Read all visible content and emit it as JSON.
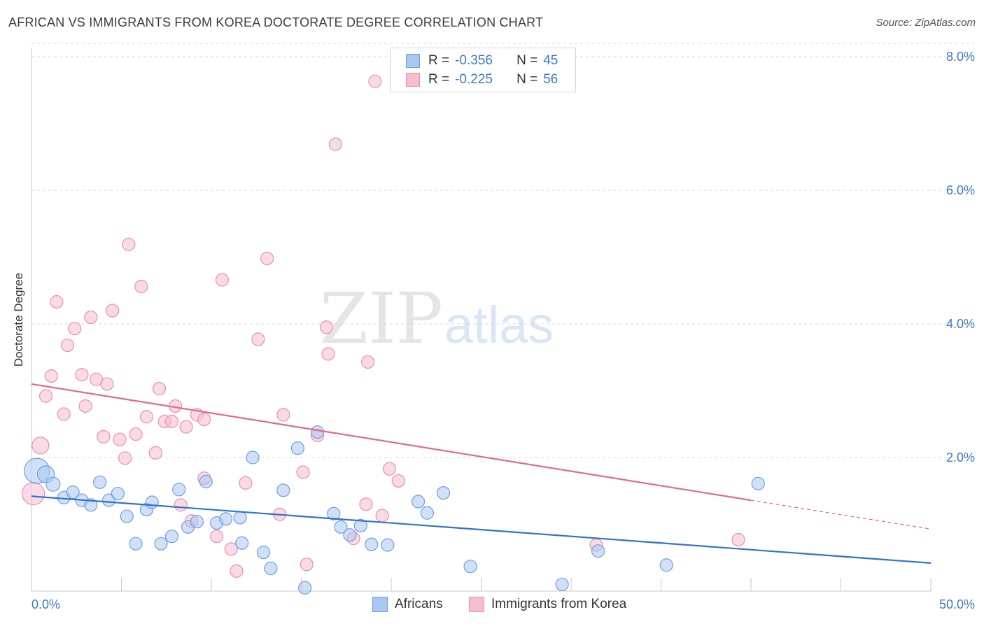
{
  "title": "AFRICAN VS IMMIGRANTS FROM KOREA DOCTORATE DEGREE CORRELATION CHART",
  "source": "Source: ZipAtlas.com",
  "watermark": {
    "zip": "ZIP",
    "atlas": "atlas"
  },
  "colors": {
    "blue_fill": "#a9c8f0",
    "blue_stroke": "#6f9fe0",
    "blue_line": "#2f72cf",
    "pink_fill": "#f6bcd0",
    "pink_stroke": "#ea8fb0",
    "pink_line": "#e46790",
    "tick_label": "#3f78c8",
    "grid": "#d9d9d9"
  },
  "legend": [
    {
      "r_label": "R =",
      "r_value": "-0.356",
      "n_label": "N =",
      "n_value": "45"
    },
    {
      "r_label": "R =",
      "r_value": "-0.225",
      "n_label": "N =",
      "n_value": "56"
    }
  ],
  "bottom_legend": [
    "Africans",
    "Immigrants from Korea"
  ],
  "chart_data": {
    "type": "scatter",
    "ylabel": "Doctorate Degree",
    "xlim": [
      0,
      50
    ],
    "ylim": [
      0,
      8.2
    ],
    "x_tick_labels": [
      "0.0%",
      "50.0%"
    ],
    "y_ticks": [
      2,
      4,
      6,
      8
    ],
    "y_tick_labels": [
      "2.0%",
      "4.0%",
      "6.0%",
      "8.0%"
    ],
    "grid": true,
    "series": [
      {
        "name": "Africans",
        "trend": {
          "x": [
            0,
            50
          ],
          "y": [
            1.42,
            0.42
          ]
        },
        "points": [
          {
            "x": 0.3,
            "y": 1.8,
            "s": 18
          },
          {
            "x": 0.8,
            "y": 1.75,
            "s": 12
          },
          {
            "x": 1.2,
            "y": 1.6,
            "s": 10
          },
          {
            "x": 1.8,
            "y": 1.4,
            "s": 9
          },
          {
            "x": 2.3,
            "y": 1.48,
            "s": 9
          },
          {
            "x": 2.8,
            "y": 1.36,
            "s": 9
          },
          {
            "x": 3.3,
            "y": 1.29,
            "s": 9
          },
          {
            "x": 3.8,
            "y": 1.63,
            "s": 9
          },
          {
            "x": 4.3,
            "y": 1.36,
            "s": 9
          },
          {
            "x": 4.8,
            "y": 1.46,
            "s": 9
          },
          {
            "x": 5.3,
            "y": 1.12,
            "s": 9
          },
          {
            "x": 5.8,
            "y": 0.71,
            "s": 9
          },
          {
            "x": 6.4,
            "y": 1.22,
            "s": 9
          },
          {
            "x": 6.7,
            "y": 1.33,
            "s": 9
          },
          {
            "x": 7.2,
            "y": 0.71,
            "s": 9
          },
          {
            "x": 7.8,
            "y": 0.82,
            "s": 9
          },
          {
            "x": 8.2,
            "y": 1.52,
            "s": 9
          },
          {
            "x": 8.7,
            "y": 0.96,
            "s": 9
          },
          {
            "x": 9.2,
            "y": 1.04,
            "s": 9
          },
          {
            "x": 9.7,
            "y": 1.64,
            "s": 9
          },
          {
            "x": 10.3,
            "y": 1.02,
            "s": 9
          },
          {
            "x": 10.8,
            "y": 1.08,
            "s": 9
          },
          {
            "x": 11.6,
            "y": 1.1,
            "s": 9
          },
          {
            "x": 11.7,
            "y": 0.72,
            "s": 9
          },
          {
            "x": 12.3,
            "y": 2.0,
            "s": 9
          },
          {
            "x": 12.9,
            "y": 0.58,
            "s": 9
          },
          {
            "x": 13.3,
            "y": 0.34,
            "s": 9
          },
          {
            "x": 14.0,
            "y": 1.51,
            "s": 9
          },
          {
            "x": 14.8,
            "y": 2.14,
            "s": 9
          },
          {
            "x": 15.2,
            "y": 0.05,
            "s": 9
          },
          {
            "x": 15.9,
            "y": 2.38,
            "s": 9
          },
          {
            "x": 16.8,
            "y": 1.16,
            "s": 9
          },
          {
            "x": 17.2,
            "y": 0.96,
            "s": 9
          },
          {
            "x": 17.7,
            "y": 0.84,
            "s": 9
          },
          {
            "x": 18.3,
            "y": 0.98,
            "s": 9
          },
          {
            "x": 18.9,
            "y": 0.7,
            "s": 9
          },
          {
            "x": 19.8,
            "y": 0.69,
            "s": 9
          },
          {
            "x": 21.5,
            "y": 1.34,
            "s": 9
          },
          {
            "x": 22.0,
            "y": 1.17,
            "s": 9
          },
          {
            "x": 22.9,
            "y": 1.47,
            "s": 9
          },
          {
            "x": 24.4,
            "y": 0.37,
            "s": 9
          },
          {
            "x": 29.5,
            "y": 0.1,
            "s": 9
          },
          {
            "x": 31.5,
            "y": 0.6,
            "s": 9
          },
          {
            "x": 35.3,
            "y": 0.39,
            "s": 9
          },
          {
            "x": 40.4,
            "y": 1.61,
            "s": 9
          }
        ]
      },
      {
        "name": "Immigrants from Korea",
        "trend": {
          "x": [
            0,
            40
          ],
          "y": [
            3.1,
            1.36
          ]
        },
        "trend_dashed": {
          "x": [
            40,
            50
          ],
          "y": [
            1.36,
            0.93
          ]
        },
        "points": [
          {
            "x": 0.1,
            "y": 1.46,
            "s": 16
          },
          {
            "x": 0.5,
            "y": 2.18,
            "s": 12
          },
          {
            "x": 0.8,
            "y": 2.92,
            "s": 9
          },
          {
            "x": 1.1,
            "y": 3.22,
            "s": 9
          },
          {
            "x": 1.4,
            "y": 4.33,
            "s": 9
          },
          {
            "x": 1.8,
            "y": 2.65,
            "s": 9
          },
          {
            "x": 2.0,
            "y": 3.68,
            "s": 9
          },
          {
            "x": 2.4,
            "y": 3.93,
            "s": 9
          },
          {
            "x": 2.8,
            "y": 3.24,
            "s": 9
          },
          {
            "x": 3.0,
            "y": 2.77,
            "s": 9
          },
          {
            "x": 3.3,
            "y": 4.1,
            "s": 9
          },
          {
            "x": 3.6,
            "y": 3.17,
            "s": 9
          },
          {
            "x": 4.0,
            "y": 2.31,
            "s": 9
          },
          {
            "x": 4.2,
            "y": 3.1,
            "s": 9
          },
          {
            "x": 4.5,
            "y": 4.2,
            "s": 9
          },
          {
            "x": 4.9,
            "y": 2.27,
            "s": 9
          },
          {
            "x": 5.2,
            "y": 1.99,
            "s": 9
          },
          {
            "x": 5.4,
            "y": 5.19,
            "s": 9
          },
          {
            "x": 5.8,
            "y": 2.35,
            "s": 9
          },
          {
            "x": 6.1,
            "y": 4.56,
            "s": 9
          },
          {
            "x": 6.4,
            "y": 2.61,
            "s": 9
          },
          {
            "x": 6.9,
            "y": 2.07,
            "s": 9
          },
          {
            "x": 7.1,
            "y": 3.03,
            "s": 9
          },
          {
            "x": 7.4,
            "y": 2.54,
            "s": 9
          },
          {
            "x": 7.8,
            "y": 2.54,
            "s": 9
          },
          {
            "x": 8.0,
            "y": 2.77,
            "s": 9
          },
          {
            "x": 8.3,
            "y": 1.29,
            "s": 9
          },
          {
            "x": 8.6,
            "y": 2.46,
            "s": 9
          },
          {
            "x": 8.9,
            "y": 1.05,
            "s": 9
          },
          {
            "x": 9.2,
            "y": 2.64,
            "s": 9
          },
          {
            "x": 9.6,
            "y": 2.57,
            "s": 9
          },
          {
            "x": 9.6,
            "y": 1.69,
            "s": 9
          },
          {
            "x": 10.3,
            "y": 0.82,
            "s": 9
          },
          {
            "x": 10.6,
            "y": 4.66,
            "s": 9
          },
          {
            "x": 11.1,
            "y": 0.63,
            "s": 9
          },
          {
            "x": 11.4,
            "y": 0.3,
            "s": 9
          },
          {
            "x": 11.9,
            "y": 1.62,
            "s": 9
          },
          {
            "x": 12.6,
            "y": 3.77,
            "s": 9
          },
          {
            "x": 13.1,
            "y": 4.98,
            "s": 9
          },
          {
            "x": 13.8,
            "y": 1.15,
            "s": 9
          },
          {
            "x": 14.0,
            "y": 2.64,
            "s": 9
          },
          {
            "x": 15.1,
            "y": 1.78,
            "s": 9
          },
          {
            "x": 15.3,
            "y": 0.4,
            "s": 9
          },
          {
            "x": 15.9,
            "y": 2.33,
            "s": 9
          },
          {
            "x": 16.4,
            "y": 3.95,
            "s": 9
          },
          {
            "x": 16.5,
            "y": 3.55,
            "s": 9
          },
          {
            "x": 16.9,
            "y": 6.69,
            "s": 9
          },
          {
            "x": 17.9,
            "y": 0.79,
            "s": 9
          },
          {
            "x": 18.6,
            "y": 1.3,
            "s": 9
          },
          {
            "x": 18.7,
            "y": 3.43,
            "s": 9
          },
          {
            "x": 19.1,
            "y": 7.63,
            "s": 9
          },
          {
            "x": 19.5,
            "y": 1.13,
            "s": 9
          },
          {
            "x": 19.9,
            "y": 1.83,
            "s": 9
          },
          {
            "x": 20.4,
            "y": 1.65,
            "s": 9
          },
          {
            "x": 31.4,
            "y": 0.69,
            "s": 9
          },
          {
            "x": 39.3,
            "y": 0.77,
            "s": 9
          }
        ]
      }
    ]
  }
}
